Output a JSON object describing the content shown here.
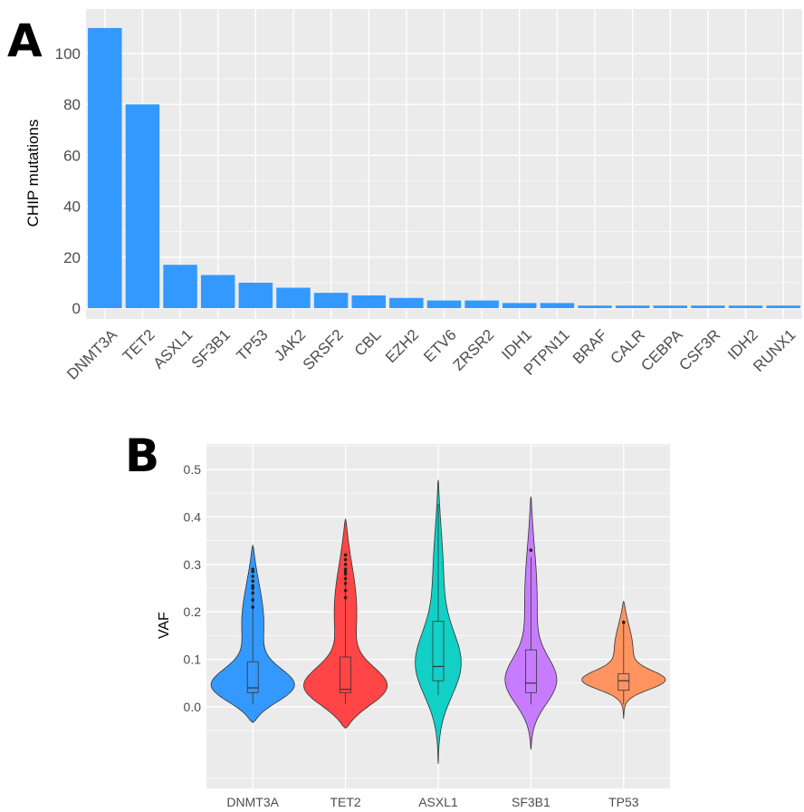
{
  "chart_data": [
    {
      "panel": "A",
      "type": "bar",
      "title": "",
      "xlabel": "",
      "ylabel": "CHIP mutations",
      "ylim": [
        0,
        110
      ],
      "yticks": [
        0,
        20,
        40,
        60,
        80,
        100
      ],
      "categories": [
        "DNMT3A",
        "TET2",
        "ASXL1",
        "SF3B1",
        "TP53",
        "JAK2",
        "SRSF2",
        "CBL",
        "EZH2",
        "ETV6",
        "ZRSR2",
        "IDH1",
        "PTPN11",
        "BRAF",
        "CALR",
        "CEBPA",
        "CSF3R",
        "IDH2",
        "RUNX1"
      ],
      "values": [
        110,
        80,
        17,
        13,
        10,
        8,
        6,
        5,
        4,
        3,
        3,
        2,
        2,
        1,
        1,
        1,
        1,
        1,
        1
      ],
      "colors": {
        "bar": "#3399ff",
        "panel_bg": "#ebebeb",
        "grid": "#ffffff"
      },
      "grid": true,
      "legend": "none"
    },
    {
      "panel": "B",
      "type": "violin",
      "title": "",
      "xlabel": "",
      "ylabel": "VAF",
      "ylim": [
        -0.12,
        0.53
      ],
      "yticks": [
        "0.0",
        "0.1",
        "0.2",
        "0.3",
        "0.4",
        "0.5"
      ],
      "categories": [
        "DNMT3A",
        "TET2",
        "ASXL1",
        "SF3B1",
        "TP53"
      ],
      "series": [
        {
          "color": "#3399ff",
          "min": -0.033,
          "max": 0.34,
          "q1": 0.03,
          "median": 0.04,
          "q3": 0.095,
          "outliers": [
            0.21,
            0.225,
            0.24,
            0.25,
            0.255,
            0.265,
            0.275,
            0.285,
            0.29
          ]
        },
        {
          "color": "#ff4545",
          "min": -0.045,
          "max": 0.395,
          "q1": 0.03,
          "median": 0.037,
          "q3": 0.105,
          "outliers": [
            0.23,
            0.245,
            0.26,
            0.27,
            0.28,
            0.285,
            0.29,
            0.3,
            0.31,
            0.32
          ]
        },
        {
          "color": "#12d0c6",
          "min": -0.12,
          "max": 0.478,
          "q1": 0.055,
          "median": 0.085,
          "q3": 0.18,
          "outliers": []
        },
        {
          "color": "#c77cff",
          "min": -0.09,
          "max": 0.443,
          "q1": 0.03,
          "median": 0.05,
          "q3": 0.12,
          "outliers": [
            0.33
          ]
        },
        {
          "color": "#ff9460",
          "min": -0.025,
          "max": 0.222,
          "q1": 0.035,
          "median": 0.055,
          "q3": 0.07,
          "outliers": [
            0.178
          ]
        }
      ],
      "colors": {
        "panel_bg": "#ebebeb",
        "grid": "#ffffff"
      },
      "grid": true,
      "legend": "none"
    }
  ],
  "panel_labels": [
    "A",
    "B"
  ]
}
